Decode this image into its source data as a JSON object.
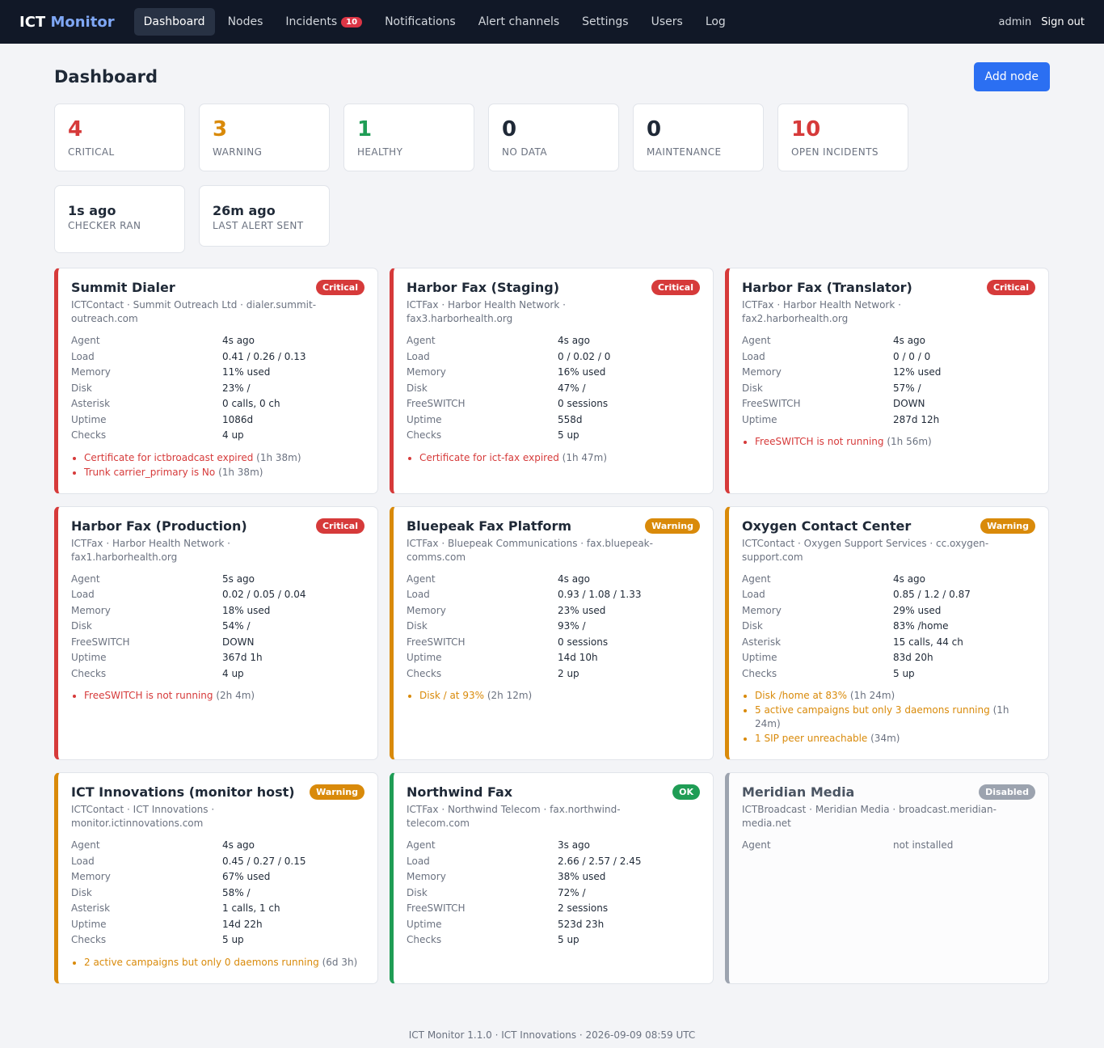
{
  "nav": {
    "brand_main": "ICT",
    "brand_accent": "Monitor",
    "links": [
      {
        "label": "Dashboard"
      },
      {
        "label": "Nodes"
      },
      {
        "label": "Incidents",
        "badge": "10"
      },
      {
        "label": "Notifications"
      },
      {
        "label": "Alert channels"
      },
      {
        "label": "Settings"
      },
      {
        "label": "Users"
      },
      {
        "label": "Log"
      }
    ],
    "user": "admin",
    "signout": "Sign out"
  },
  "page": {
    "title": "Dashboard",
    "add_button": "Add node"
  },
  "stats": [
    {
      "value": "4",
      "label": "CRITICAL"
    },
    {
      "value": "3",
      "label": "WARNING"
    },
    {
      "value": "1",
      "label": "HEALTHY"
    },
    {
      "value": "0",
      "label": "NO DATA"
    },
    {
      "value": "0",
      "label": "MAINTENANCE"
    },
    {
      "value": "10",
      "label": "OPEN INCIDENTS"
    },
    {
      "value": "1s ago",
      "label": "CHECKER RAN"
    },
    {
      "value": "26m ago",
      "label": "LAST ALERT SENT"
    }
  ],
  "status_colors": {
    "critical": "#d63a3a",
    "warning": "#d98a0a",
    "ok": "#1f9d55",
    "disabled": "#9ca3af"
  },
  "cards": [
    {
      "name": "Summit Dialer",
      "badge": "Critical",
      "sub": "ICTContact · Summit Outreach Ltd · dialer.summit-outreach.com",
      "rows": [
        {
          "k": "Agent",
          "v": "4s ago"
        },
        {
          "k": "Load",
          "v": "0.41 / 0.26 / 0.13"
        },
        {
          "k": "Memory",
          "v": "11% used"
        },
        {
          "k": "Disk",
          "v": "23% /"
        },
        {
          "k": "Asterisk",
          "v": "0 calls, 0 ch"
        },
        {
          "k": "Uptime",
          "v": "1086d"
        },
        {
          "k": "Checks",
          "v": "4 up"
        }
      ],
      "issues": [
        {
          "text": "Certificate for ictbroadcast expired",
          "age": "(1h 38m)"
        },
        {
          "text": "Trunk carrier_primary is No",
          "age": "(1h 38m)"
        }
      ]
    },
    {
      "name": "Harbor Fax (Staging)",
      "badge": "Critical",
      "sub": "ICTFax · Harbor Health Network · fax3.harborhealth.org",
      "rows": [
        {
          "k": "Agent",
          "v": "4s ago"
        },
        {
          "k": "Load",
          "v": "0 / 0.02 / 0"
        },
        {
          "k": "Memory",
          "v": "16% used"
        },
        {
          "k": "Disk",
          "v": "47% /"
        },
        {
          "k": "FreeSWITCH",
          "v": "0 sessions"
        },
        {
          "k": "Uptime",
          "v": "558d"
        },
        {
          "k": "Checks",
          "v": "5 up"
        }
      ],
      "issues": [
        {
          "text": "Certificate for ict-fax expired",
          "age": "(1h 47m)"
        }
      ]
    },
    {
      "name": "Harbor Fax (Translator)",
      "badge": "Critical",
      "sub": "ICTFax · Harbor Health Network · fax2.harborhealth.org",
      "rows": [
        {
          "k": "Agent",
          "v": "4s ago"
        },
        {
          "k": "Load",
          "v": "0 / 0 / 0"
        },
        {
          "k": "Memory",
          "v": "12% used"
        },
        {
          "k": "Disk",
          "v": "57% /"
        },
        {
          "k": "FreeSWITCH",
          "v": "DOWN"
        },
        {
          "k": "Uptime",
          "v": "287d 12h"
        }
      ],
      "issues": [
        {
          "text": "FreeSWITCH is not running",
          "age": "(1h 56m)"
        }
      ]
    },
    {
      "name": "Harbor Fax (Production)",
      "badge": "Critical",
      "sub": "ICTFax · Harbor Health Network · fax1.harborhealth.org",
      "rows": [
        {
          "k": "Agent",
          "v": "5s ago"
        },
        {
          "k": "Load",
          "v": "0.02 / 0.05 / 0.04"
        },
        {
          "k": "Memory",
          "v": "18% used"
        },
        {
          "k": "Disk",
          "v": "54% /"
        },
        {
          "k": "FreeSWITCH",
          "v": "DOWN"
        },
        {
          "k": "Uptime",
          "v": "367d 1h"
        },
        {
          "k": "Checks",
          "v": "4 up"
        }
      ],
      "issues": [
        {
          "text": "FreeSWITCH is not running",
          "age": "(2h 4m)"
        }
      ]
    },
    {
      "name": "Bluepeak Fax Platform",
      "badge": "Warning",
      "sub": "ICTFax · Bluepeak Communications · fax.bluepeak-comms.com",
      "rows": [
        {
          "k": "Agent",
          "v": "4s ago"
        },
        {
          "k": "Load",
          "v": "0.93 / 1.08 / 1.33"
        },
        {
          "k": "Memory",
          "v": "23% used"
        },
        {
          "k": "Disk",
          "v": "93% /"
        },
        {
          "k": "FreeSWITCH",
          "v": "0 sessions"
        },
        {
          "k": "Uptime",
          "v": "14d 10h"
        },
        {
          "k": "Checks",
          "v": "2 up"
        }
      ],
      "issues": [
        {
          "text": "Disk / at 93%",
          "age": "(2h 12m)"
        }
      ]
    },
    {
      "name": "Oxygen Contact Center",
      "badge": "Warning",
      "sub": "ICTContact · Oxygen Support Services · cc.oxygen-support.com",
      "rows": [
        {
          "k": "Agent",
          "v": "4s ago"
        },
        {
          "k": "Load",
          "v": "0.85 / 1.2 / 0.87"
        },
        {
          "k": "Memory",
          "v": "29% used"
        },
        {
          "k": "Disk",
          "v": "83% /home"
        },
        {
          "k": "Asterisk",
          "v": "15 calls, 44 ch"
        },
        {
          "k": "Uptime",
          "v": "83d 20h"
        },
        {
          "k": "Checks",
          "v": "5 up"
        }
      ],
      "issues": [
        {
          "text": "Disk /home at 83%",
          "age": "(1h 24m)"
        },
        {
          "text": "5 active campaigns but only 3 daemons running",
          "age": "(1h 24m)"
        },
        {
          "text": "1 SIP peer unreachable",
          "age": "(34m)"
        }
      ]
    },
    {
      "name": "ICT Innovations (monitor host)",
      "badge": "Warning",
      "sub": "ICTContact · ICT Innovations · monitor.ictinnovations.com",
      "rows": [
        {
          "k": "Agent",
          "v": "4s ago"
        },
        {
          "k": "Load",
          "v": "0.45 / 0.27 / 0.15"
        },
        {
          "k": "Memory",
          "v": "67% used"
        },
        {
          "k": "Disk",
          "v": "58% /"
        },
        {
          "k": "Asterisk",
          "v": "1 calls, 1 ch"
        },
        {
          "k": "Uptime",
          "v": "14d 22h"
        },
        {
          "k": "Checks",
          "v": "5 up"
        }
      ],
      "issues": [
        {
          "text": "2 active campaigns but only 0 daemons running",
          "age": "(6d 3h)"
        }
      ]
    },
    {
      "name": "Northwind Fax",
      "badge": "OK",
      "sub": "ICTFax · Northwind Telecom · fax.northwind-telecom.com",
      "rows": [
        {
          "k": "Agent",
          "v": "3s ago"
        },
        {
          "k": "Load",
          "v": "2.66 / 2.57 / 2.45"
        },
        {
          "k": "Memory",
          "v": "38% used"
        },
        {
          "k": "Disk",
          "v": "72% /"
        },
        {
          "k": "FreeSWITCH",
          "v": "2 sessions"
        },
        {
          "k": "Uptime",
          "v": "523d 23h"
        },
        {
          "k": "Checks",
          "v": "5 up"
        }
      ],
      "issues": []
    },
    {
      "name": "Meridian Media",
      "badge": "Disabled",
      "sub": "ICTBroadcast · Meridian Media · broadcast.meridian-media.net",
      "rows": [
        {
          "k": "Agent",
          "v": "not installed"
        }
      ],
      "issues": []
    }
  ],
  "footer": "ICT Monitor 1.1.0 · ICT Innovations · 2026-09-09 08:59 UTC"
}
